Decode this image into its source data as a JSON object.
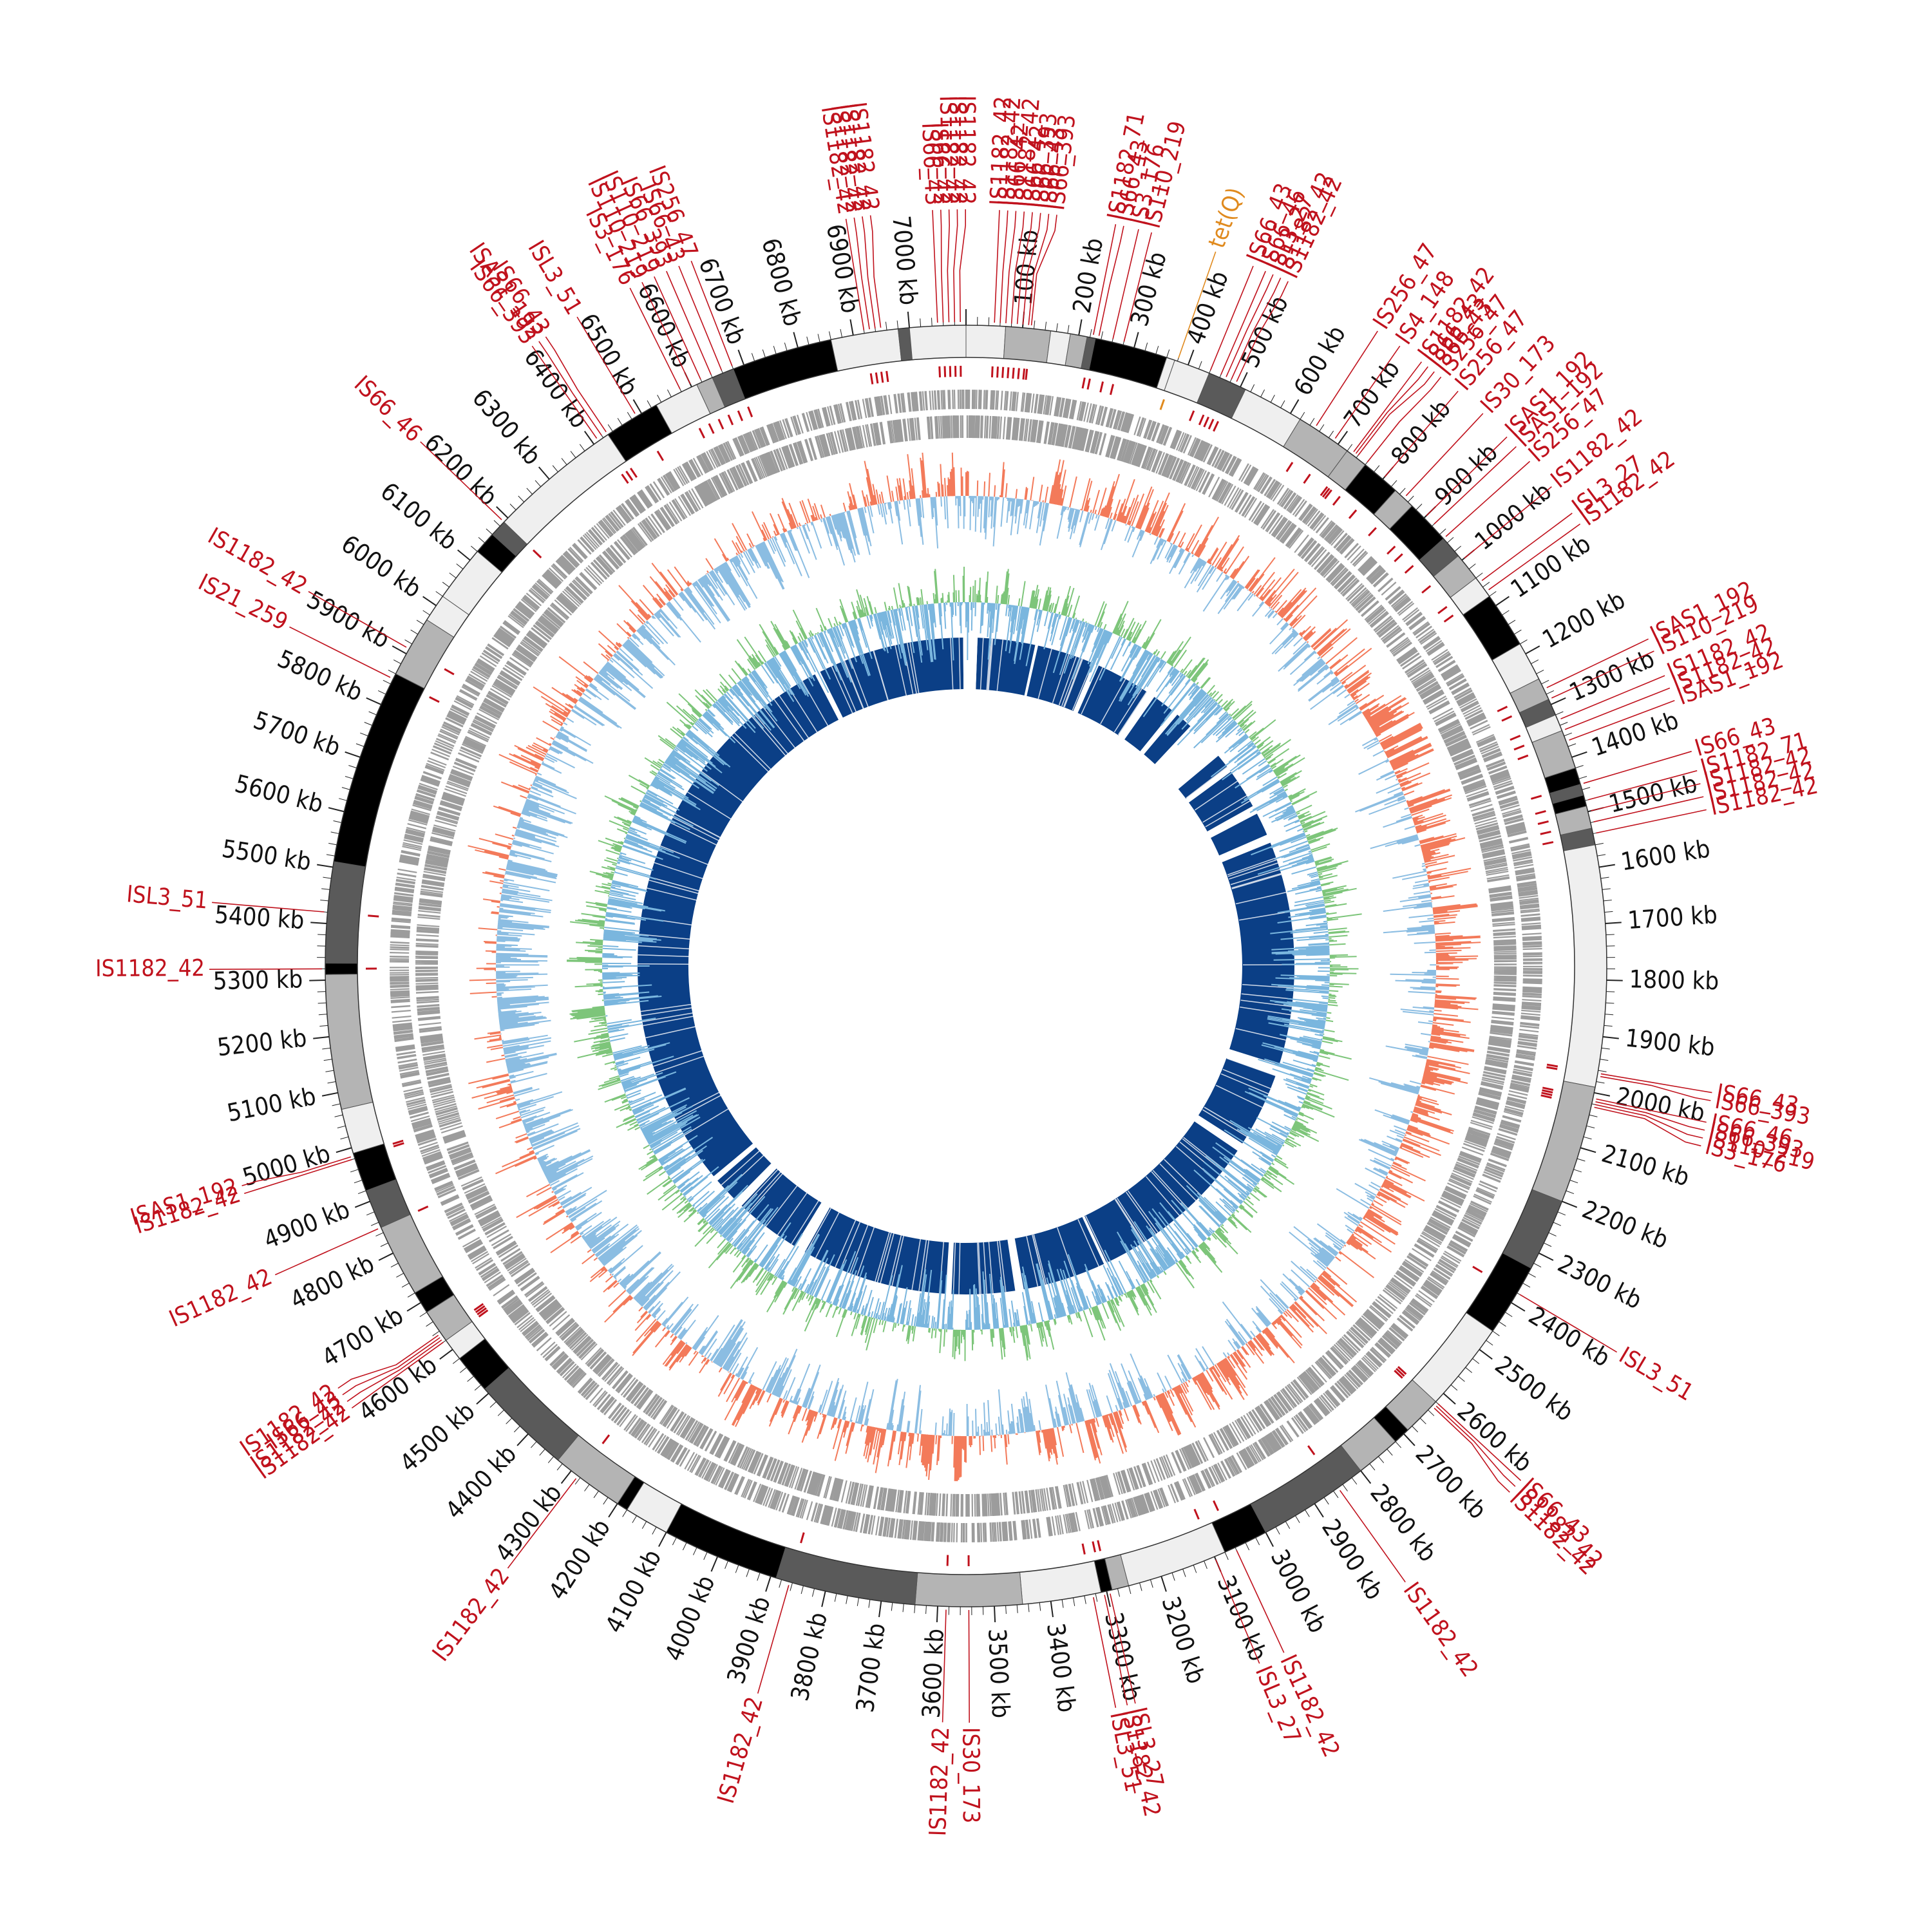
{
  "genome": {
    "length_kb": 7100,
    "tick_major_kb": 100,
    "tick_minor_kb": 20,
    "tick_suffix": " kb"
  },
  "colors": {
    "is_element": "#c0121d",
    "resistance_gene": "#e08a1e",
    "gc_skew_high": "#f37a5a",
    "gc_skew_low": "#8bbde2",
    "gc_content_high": "#7dc57a",
    "gc_content_low": "#7ab6de",
    "blast_hit": "#0b3f86",
    "gene_feature": "#9c9c9c",
    "contig_shades": [
      "#000000",
      "#5a5a5a",
      "#b4b4b4",
      "#efefef"
    ]
  },
  "contigs_kb": [
    [
      0,
      70,
      3
    ],
    [
      70,
      150,
      2
    ],
    [
      150,
      185,
      3
    ],
    [
      185,
      215,
      2
    ],
    [
      215,
      230,
      1
    ],
    [
      230,
      360,
      0
    ],
    [
      360,
      375,
      3
    ],
    [
      375,
      440,
      3
    ],
    [
      440,
      510,
      1
    ],
    [
      510,
      620,
      3
    ],
    [
      620,
      720,
      2
    ],
    [
      720,
      760,
      2
    ],
    [
      760,
      830,
      0
    ],
    [
      830,
      870,
      2
    ],
    [
      870,
      950,
      0
    ],
    [
      950,
      990,
      1
    ],
    [
      990,
      1040,
      2
    ],
    [
      1040,
      1080,
      3
    ],
    [
      1080,
      1180,
      0
    ],
    [
      1180,
      1250,
      3
    ],
    [
      1250,
      1290,
      2
    ],
    [
      1290,
      1320,
      1
    ],
    [
      1320,
      1350,
      3
    ],
    [
      1350,
      1420,
      2
    ],
    [
      1420,
      1450,
      0
    ],
    [
      1450,
      1470,
      1
    ],
    [
      1470,
      1490,
      0
    ],
    [
      1490,
      1530,
      2
    ],
    [
      1530,
      1560,
      1
    ],
    [
      1560,
      1990,
      3
    ],
    [
      1990,
      2200,
      2
    ],
    [
      2200,
      2330,
      1
    ],
    [
      2330,
      2460,
      0
    ],
    [
      2460,
      2620,
      3
    ],
    [
      2620,
      2690,
      2
    ],
    [
      2690,
      2720,
      0
    ],
    [
      2720,
      2800,
      2
    ],
    [
      2800,
      3000,
      1
    ],
    [
      3000,
      3080,
      0
    ],
    [
      3080,
      3260,
      3
    ],
    [
      3260,
      3290,
      2
    ],
    [
      3290,
      3310,
      0
    ],
    [
      3310,
      3450,
      3
    ],
    [
      3450,
      3640,
      2
    ],
    [
      3640,
      3890,
      1
    ],
    [
      3890,
      4100,
      0
    ],
    [
      4100,
      4180,
      3
    ],
    [
      4180,
      4200,
      0
    ],
    [
      4200,
      4330,
      2
    ],
    [
      4330,
      4510,
      1
    ],
    [
      4510,
      4580,
      0
    ],
    [
      4580,
      4620,
      3
    ],
    [
      4620,
      4680,
      2
    ],
    [
      4680,
      4720,
      0
    ],
    [
      4720,
      4850,
      2
    ],
    [
      4850,
      4920,
      1
    ],
    [
      4920,
      4990,
      0
    ],
    [
      4990,
      5070,
      3
    ],
    [
      5070,
      5310,
      2
    ],
    [
      5310,
      5330,
      0
    ],
    [
      5330,
      5510,
      1
    ],
    [
      5510,
      5860,
      0
    ],
    [
      5860,
      5970,
      2
    ],
    [
      5970,
      6020,
      3
    ],
    [
      6020,
      6120,
      3
    ],
    [
      6120,
      6160,
      0
    ],
    [
      6160,
      6190,
      1
    ],
    [
      6190,
      6430,
      3
    ],
    [
      6430,
      6530,
      0
    ],
    [
      6530,
      6610,
      3
    ],
    [
      6610,
      6640,
      2
    ],
    [
      6640,
      6680,
      1
    ],
    [
      6680,
      6860,
      0
    ],
    [
      6860,
      6980,
      3
    ],
    [
      6980,
      7000,
      1
    ],
    [
      7000,
      7100,
      3
    ]
  ],
  "blast_gaps_kb": [
    [
      7090,
      7100
    ],
    [
      0,
      40
    ],
    [
      240,
      250
    ],
    [
      450,
      470
    ],
    [
      660,
      690
    ],
    [
      770,
      790
    ],
    [
      850,
      990
    ],
    [
      1040,
      1060
    ],
    [
      1200,
      1230
    ],
    [
      1310,
      1340
    ],
    [
      2120,
      2160
    ],
    [
      2420,
      2450
    ],
    [
      3050,
      3060
    ],
    [
      3350,
      3380
    ],
    [
      3600,
      3620
    ],
    [
      4130,
      4170
    ],
    [
      4400,
      4430
    ],
    [
      4520,
      4540
    ],
    [
      6560,
      6580
    ]
  ],
  "markers": [
    {
      "label": "IS66_43",
      "pos": 7050,
      "color": "is_element"
    },
    {
      "label": "IS66_42",
      "pos": 7060,
      "color": "is_element"
    },
    {
      "label": "IS1182_42",
      "pos": 7070,
      "color": "is_element"
    },
    {
      "label": "IS1182_42",
      "pos": 7080,
      "color": "is_element"
    },
    {
      "label": "IS1182_42",
      "pos": 7090,
      "color": "is_element"
    },
    {
      "label": "IS1182_42",
      "pos": 50,
      "color": "is_element"
    },
    {
      "label": "IS1182_42",
      "pos": 60,
      "color": "is_element"
    },
    {
      "label": "IS66_42",
      "pos": 70,
      "color": "is_element"
    },
    {
      "label": "IS1182_42",
      "pos": 80,
      "color": "is_element"
    },
    {
      "label": "IS66_42",
      "pos": 90,
      "color": "is_element"
    },
    {
      "label": "IS66_393",
      "pos": 100,
      "color": "is_element"
    },
    {
      "label": "IS66_43",
      "pos": 110,
      "color": "is_element"
    },
    {
      "label": "IS66_393",
      "pos": 115,
      "color": "is_element"
    },
    {
      "label": "IS1182_71",
      "pos": 225,
      "color": "is_element"
    },
    {
      "label": "IS66_43",
      "pos": 235,
      "color": "is_element"
    },
    {
      "label": "IS3_176",
      "pos": 260,
      "color": "is_element"
    },
    {
      "label": "IS110_219",
      "pos": 280,
      "color": "is_element"
    },
    {
      "label": "tet(Q)",
      "pos": 380,
      "color": "resistance_gene"
    },
    {
      "label": "IS66_43",
      "pos": 440,
      "color": "is_element"
    },
    {
      "label": "IS66_46",
      "pos": 460,
      "color": "is_element"
    },
    {
      "label": "ISL3_27",
      "pos": 470,
      "color": "is_element"
    },
    {
      "label": "IS1182_42",
      "pos": 480,
      "color": "is_element"
    },
    {
      "label": "IS1182_42",
      "pos": 490,
      "color": "is_element"
    },
    {
      "label": "IS256_47",
      "pos": 650,
      "color": "is_element"
    },
    {
      "label": "IS4_148",
      "pos": 690,
      "color": "is_element"
    },
    {
      "label": "IS1182_42",
      "pos": 730,
      "color": "is_element"
    },
    {
      "label": "IS66_43",
      "pos": 735,
      "color": "is_element"
    },
    {
      "label": "IS66_43",
      "pos": 740,
      "color": "is_element"
    },
    {
      "label": "IS256_47",
      "pos": 760,
      "color": "is_element"
    },
    {
      "label": "IS256_47",
      "pos": 800,
      "color": "is_element"
    },
    {
      "label": "IS30_173",
      "pos": 850,
      "color": "is_element"
    },
    {
      "label": "ISAS1_192",
      "pos": 900,
      "color": "is_element"
    },
    {
      "label": "ISAS1_192",
      "pos": 920,
      "color": "is_element"
    },
    {
      "label": "IS256_47",
      "pos": 950,
      "color": "is_element"
    },
    {
      "label": "IS1182_42",
      "pos": 1000,
      "color": "is_element"
    },
    {
      "label": "ISL3_27",
      "pos": 1050,
      "color": "is_element"
    },
    {
      "label": "IS1182_42",
      "pos": 1070,
      "color": "is_element"
    },
    {
      "label": "ISAS1_192",
      "pos": 1270,
      "color": "is_element"
    },
    {
      "label": "IS110_219",
      "pos": 1290,
      "color": "is_element"
    },
    {
      "label": "IS1182_42",
      "pos": 1330,
      "color": "is_element"
    },
    {
      "label": "IS1182_42",
      "pos": 1350,
      "color": "is_element"
    },
    {
      "label": "ISAS1_192",
      "pos": 1370,
      "color": "is_element"
    },
    {
      "label": "IS66_43",
      "pos": 1450,
      "color": "is_element"
    },
    {
      "label": "IS1182_71",
      "pos": 1480,
      "color": "is_element"
    },
    {
      "label": "IS1182_42",
      "pos": 1500,
      "color": "is_element"
    },
    {
      "label": "IS1182_42",
      "pos": 1520,
      "color": "is_element"
    },
    {
      "label": "IS1182_42",
      "pos": 1540,
      "color": "is_element"
    },
    {
      "label": "IS66_43",
      "pos": 1965,
      "color": "is_element"
    },
    {
      "label": "IS66_393",
      "pos": 1970,
      "color": "is_element"
    },
    {
      "label": "IS66_46",
      "pos": 2010,
      "color": "is_element"
    },
    {
      "label": "IS66_393",
      "pos": 2015,
      "color": "is_element"
    },
    {
      "label": "IS110_219",
      "pos": 2020,
      "color": "is_element"
    },
    {
      "label": "IS3_176",
      "pos": 2025,
      "color": "is_element"
    },
    {
      "label": "ISL3_51",
      "pos": 2380,
      "color": "is_element"
    },
    {
      "label": "IS66_43",
      "pos": 2620,
      "color": "is_element"
    },
    {
      "label": "IS1182_42",
      "pos": 2625,
      "color": "is_element"
    },
    {
      "label": "IS1182_42",
      "pos": 2630,
      "color": "is_element"
    },
    {
      "label": "IS1182_42",
      "pos": 2850,
      "color": "is_element"
    },
    {
      "label": "IS1182_42",
      "pos": 3060,
      "color": "is_element"
    },
    {
      "label": "ISL3_27",
      "pos": 3100,
      "color": "is_element"
    },
    {
      "label": "ISL3_27",
      "pos": 3295,
      "color": "is_element"
    },
    {
      "label": "IS1182_42",
      "pos": 3305,
      "color": "is_element"
    },
    {
      "label": "ISL3_51",
      "pos": 3325,
      "color": "is_element"
    },
    {
      "label": "IS30_173",
      "pos": 3545,
      "color": "is_element"
    },
    {
      "label": "IS1182_42",
      "pos": 3585,
      "color": "is_element"
    },
    {
      "label": "IS1182_42",
      "pos": 3865,
      "color": "is_element"
    },
    {
      "label": "IS1182_42",
      "pos": 4285,
      "color": "is_element"
    },
    {
      "label": "IS1182_42",
      "pos": 4620,
      "color": "is_element"
    },
    {
      "label": "IS1182_42",
      "pos": 4625,
      "color": "is_element"
    },
    {
      "label": "IS66_43",
      "pos": 4630,
      "color": "is_element"
    },
    {
      "label": "IS1182_42",
      "pos": 4635,
      "color": "is_element"
    },
    {
      "label": "IS1182_42",
      "pos": 4850,
      "color": "is_element"
    },
    {
      "label": "IS1182_42",
      "pos": 4980,
      "color": "is_element"
    },
    {
      "label": "ISAS1_192",
      "pos": 4985,
      "color": "is_element"
    },
    {
      "label": "IS1182_42",
      "pos": 5320,
      "color": "is_element"
    },
    {
      "label": "ISL3_51",
      "pos": 5420,
      "color": "is_element"
    },
    {
      "label": "IS21_259",
      "pos": 5850,
      "color": "is_element"
    },
    {
      "label": "IS1182_42",
      "pos": 5910,
      "color": "is_element"
    },
    {
      "label": "IS66_46",
      "pos": 6190,
      "color": "is_element"
    },
    {
      "label": "IS66_393",
      "pos": 6410,
      "color": "is_element"
    },
    {
      "label": "ISAS1_192",
      "pos": 6420,
      "color": "is_element"
    },
    {
      "label": "IS66_43",
      "pos": 6430,
      "color": "is_element"
    },
    {
      "label": "ISL3_51",
      "pos": 6490,
      "color": "is_element"
    },
    {
      "label": "IS3_176",
      "pos": 6580,
      "color": "is_element"
    },
    {
      "label": "IS110_219",
      "pos": 6600,
      "color": "is_element"
    },
    {
      "label": "IS110_219",
      "pos": 6620,
      "color": "is_element"
    },
    {
      "label": "IS66_393",
      "pos": 6640,
      "color": "is_element"
    },
    {
      "label": "IS66_43",
      "pos": 6660,
      "color": "is_element"
    },
    {
      "label": "IS256_47",
      "pos": 6680,
      "color": "is_element"
    },
    {
      "label": "IS1182_42",
      "pos": 6920,
      "color": "is_element"
    },
    {
      "label": "IS1182_42",
      "pos": 6930,
      "color": "is_element"
    },
    {
      "label": "IS1182_42",
      "pos": 6940,
      "color": "is_element"
    },
    {
      "label": "IS1182_42",
      "pos": 6950,
      "color": "is_element"
    }
  ]
}
